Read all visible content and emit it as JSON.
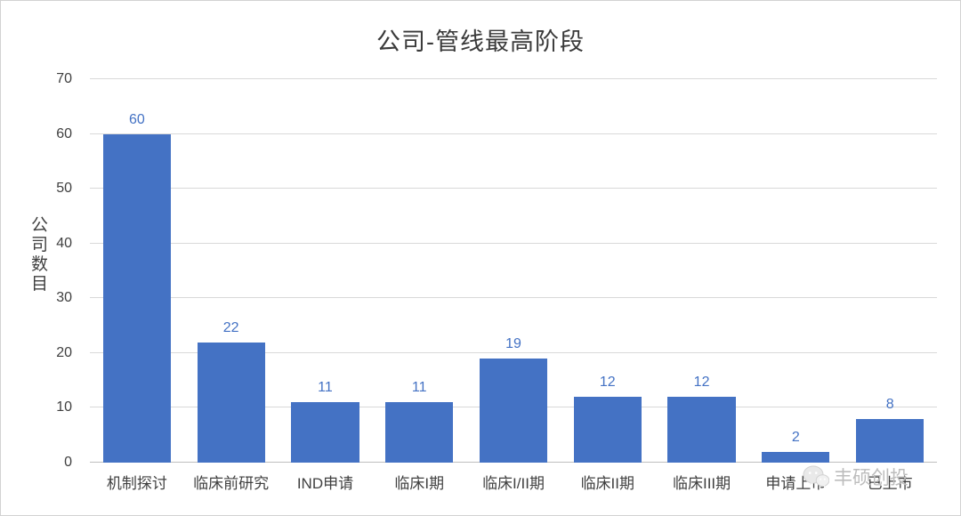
{
  "title": "公司-管线最高阶段",
  "ylabel": "公司数目",
  "watermark": {
    "text": "丰硕创投"
  },
  "chart_data": {
    "type": "bar",
    "title": "公司-管线最高阶段",
    "xlabel": "",
    "ylabel": "公司数目",
    "categories": [
      "机制探讨",
      "临床前研究",
      "IND申请",
      "临床I期",
      "临床I/II期",
      "临床II期",
      "临床III期",
      "申请上市",
      "已上市"
    ],
    "values": [
      60,
      22,
      11,
      11,
      19,
      12,
      12,
      2,
      8
    ],
    "ylim": [
      0,
      70
    ],
    "ytick_interval": 10,
    "grid": true,
    "legend": "none",
    "bar_color": "#4472C4",
    "data_label_color": "#4472C4",
    "gridline_color": "#D9D9D9",
    "axis_text_color": "#404040"
  }
}
